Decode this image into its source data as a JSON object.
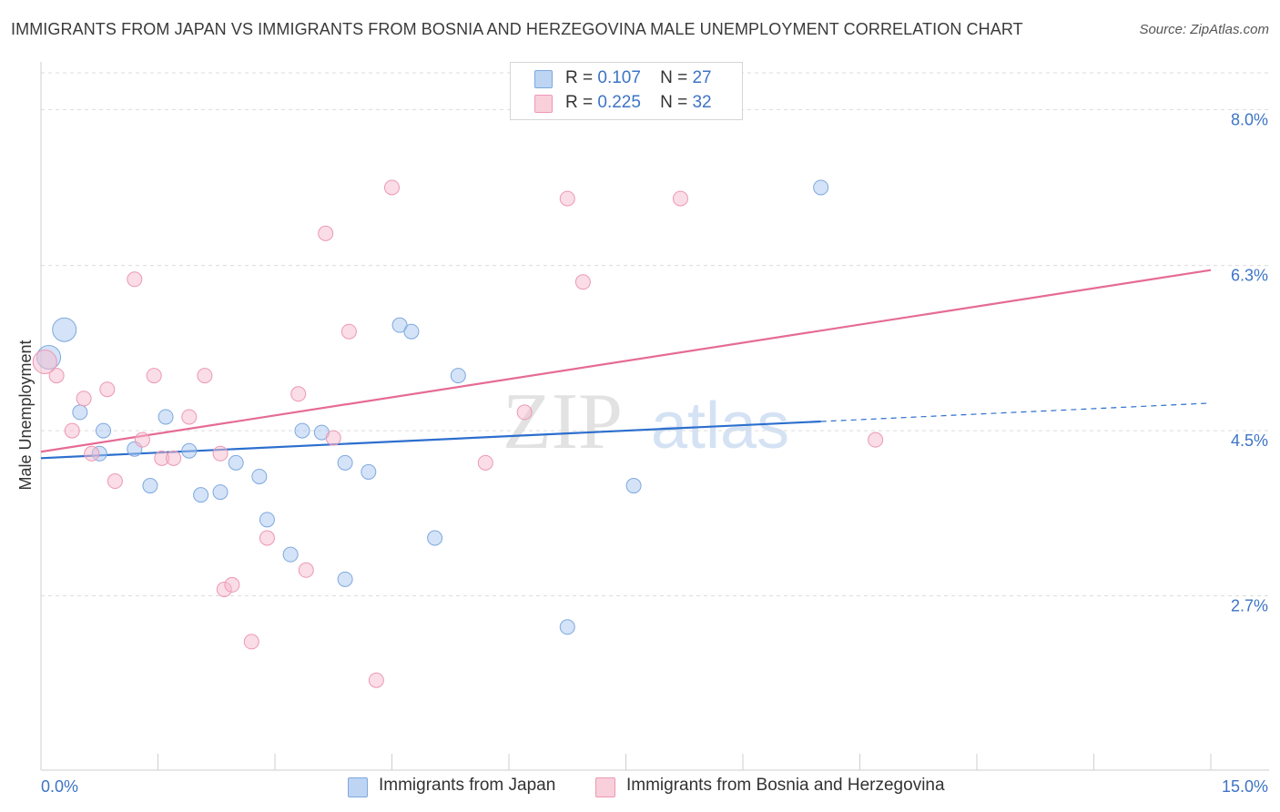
{
  "title": "IMMIGRANTS FROM JAPAN VS IMMIGRANTS FROM BOSNIA AND HERZEGOVINA MALE UNEMPLOYMENT CORRELATION CHART",
  "source": "Source: ZipAtlas.com",
  "watermark": {
    "zip": "ZIP",
    "atlas": "atlas"
  },
  "legend": {
    "r_label": "R =",
    "n_label": "N =",
    "rows": [
      {
        "r": "0.107",
        "n": "27"
      },
      {
        "r": "0.225",
        "n": "32"
      }
    ]
  },
  "chart_data": {
    "type": "scatter",
    "xlabel": "",
    "ylabel": "Male Unemployment",
    "xlim": [
      0,
      15
    ],
    "ylim": [
      0.8,
      8.4
    ],
    "x_tick_labels": [
      "0.0%",
      "15.0%"
    ],
    "y_ticks": [
      {
        "value": 2.7,
        "label": "2.7%"
      },
      {
        "value": 4.5,
        "label": "4.5%"
      },
      {
        "value": 6.3,
        "label": "6.3%"
      },
      {
        "value": 8.0,
        "label": "8.0%"
      }
    ],
    "grid": "horizontal dashed",
    "series": [
      {
        "name": "Immigrants from Japan",
        "color": "#a9c8ef",
        "stroke": "#7ea8df",
        "trend_color": "#2c6fce",
        "trend": {
          "x0": 0,
          "y0": 4.2,
          "x1": 10.0,
          "y1": 4.6,
          "x_end_dashed": 15.0,
          "y_end_dashed": 4.8
        },
        "points": [
          {
            "x": 0.3,
            "y": 5.6,
            "big": true
          },
          {
            "x": 0.1,
            "y": 5.3,
            "big": true
          },
          {
            "x": 0.5,
            "y": 4.7
          },
          {
            "x": 0.8,
            "y": 4.5
          },
          {
            "x": 0.75,
            "y": 4.25
          },
          {
            "x": 1.2,
            "y": 4.3
          },
          {
            "x": 1.6,
            "y": 4.65
          },
          {
            "x": 1.9,
            "y": 4.28
          },
          {
            "x": 1.4,
            "y": 3.9
          },
          {
            "x": 2.05,
            "y": 3.8
          },
          {
            "x": 2.3,
            "y": 3.83
          },
          {
            "x": 2.5,
            "y": 4.15
          },
          {
            "x": 2.8,
            "y": 4.0
          },
          {
            "x": 2.9,
            "y": 3.53
          },
          {
            "x": 3.2,
            "y": 3.15
          },
          {
            "x": 3.35,
            "y": 4.5
          },
          {
            "x": 3.6,
            "y": 4.48
          },
          {
            "x": 3.9,
            "y": 4.15
          },
          {
            "x": 4.2,
            "y": 4.05
          },
          {
            "x": 4.6,
            "y": 5.65
          },
          {
            "x": 4.75,
            "y": 5.58
          },
          {
            "x": 3.9,
            "y": 2.88
          },
          {
            "x": 5.05,
            "y": 3.33
          },
          {
            "x": 5.35,
            "y": 5.1
          },
          {
            "x": 7.6,
            "y": 3.9
          },
          {
            "x": 6.75,
            "y": 2.36
          },
          {
            "x": 10.0,
            "y": 7.15
          }
        ]
      },
      {
        "name": "Immigrants from Bosnia and Herzegovina",
        "color": "#f6bccd",
        "stroke": "#ec98b4",
        "trend_color": "#e56b95",
        "trend": {
          "x0": 0,
          "y0": 4.27,
          "x1": 15.0,
          "y1": 6.25
        },
        "points": [
          {
            "x": 0.2,
            "y": 5.1
          },
          {
            "x": 0.4,
            "y": 4.5
          },
          {
            "x": 0.55,
            "y": 4.85
          },
          {
            "x": 0.65,
            "y": 4.25
          },
          {
            "x": 0.85,
            "y": 4.95
          },
          {
            "x": 0.95,
            "y": 3.95
          },
          {
            "x": 1.2,
            "y": 6.15
          },
          {
            "x": 1.3,
            "y": 4.4
          },
          {
            "x": 1.45,
            "y": 5.1
          },
          {
            "x": 1.55,
            "y": 4.2
          },
          {
            "x": 1.7,
            "y": 4.2
          },
          {
            "x": 1.9,
            "y": 4.65
          },
          {
            "x": 2.1,
            "y": 5.1
          },
          {
            "x": 2.3,
            "y": 4.25
          },
          {
            "x": 2.35,
            "y": 2.77
          },
          {
            "x": 2.45,
            "y": 2.82
          },
          {
            "x": 2.7,
            "y": 2.2
          },
          {
            "x": 2.9,
            "y": 3.33
          },
          {
            "x": 3.3,
            "y": 4.9
          },
          {
            "x": 3.4,
            "y": 2.98
          },
          {
            "x": 3.65,
            "y": 6.65
          },
          {
            "x": 3.75,
            "y": 4.42
          },
          {
            "x": 3.95,
            "y": 5.58
          },
          {
            "x": 4.3,
            "y": 1.78
          },
          {
            "x": 4.5,
            "y": 7.15
          },
          {
            "x": 5.7,
            "y": 4.15
          },
          {
            "x": 6.2,
            "y": 4.7
          },
          {
            "x": 6.75,
            "y": 7.03
          },
          {
            "x": 6.95,
            "y": 6.12
          },
          {
            "x": 8.2,
            "y": 7.03
          },
          {
            "x": 10.7,
            "y": 4.4
          },
          {
            "x": 0.05,
            "y": 5.25,
            "big": true
          }
        ]
      }
    ]
  }
}
